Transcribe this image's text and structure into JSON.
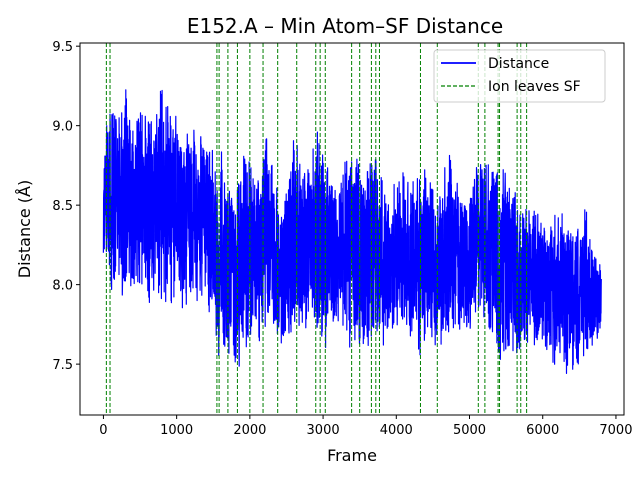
{
  "chart_data": {
    "type": "line",
    "title": "E152.A – Min Atom–SF Distance",
    "xlabel": "Frame",
    "ylabel": "Distance (Å)",
    "xlim": [
      -320,
      7110
    ],
    "ylim": [
      7.18,
      9.52
    ],
    "xticks": [
      0,
      1000,
      2000,
      3000,
      4000,
      5000,
      6000,
      7000
    ],
    "yticks": [
      7.5,
      8.0,
      8.5,
      9.0,
      9.5
    ],
    "ytick_labels": [
      "7.5",
      "8.0",
      "8.5",
      "9.0",
      "9.5"
    ],
    "legend": {
      "position": "top-right",
      "entries": [
        {
          "label": "Distance",
          "style": "solid",
          "color": "#0000ff"
        },
        {
          "label": "Ion leaves SF",
          "style": "dashed",
          "color": "#008000"
        }
      ]
    },
    "series": [
      {
        "name": "Distance",
        "color": "#0000ff",
        "n_frames": 6800,
        "x_step": 100,
        "envelope_x": [
          0,
          100,
          200,
          300,
          400,
          500,
          600,
          700,
          800,
          900,
          1000,
          1100,
          1200,
          1300,
          1400,
          1500,
          1600,
          1700,
          1800,
          1900,
          2000,
          2100,
          2200,
          2300,
          2400,
          2500,
          2600,
          2700,
          2800,
          2900,
          3000,
          3100,
          3200,
          3300,
          3400,
          3500,
          3600,
          3700,
          3800,
          3900,
          4000,
          4100,
          4200,
          4300,
          4400,
          4500,
          4600,
          4700,
          4800,
          4900,
          5000,
          5100,
          5200,
          5300,
          5400,
          5500,
          5600,
          5700,
          5800,
          5900,
          6000,
          6100,
          6200,
          6300,
          6400,
          6500,
          6600,
          6700,
          6800
        ],
        "envelope_max": [
          8.8,
          9.35,
          9.1,
          9.3,
          9.05,
          9.1,
          9.2,
          9.1,
          9.3,
          9.25,
          9.15,
          9.0,
          9.15,
          9.05,
          9.0,
          8.9,
          8.85,
          8.95,
          8.6,
          8.95,
          8.85,
          8.75,
          9.05,
          8.85,
          8.6,
          8.65,
          9.0,
          8.75,
          8.9,
          9.0,
          8.9,
          8.7,
          8.65,
          8.85,
          9.0,
          8.85,
          8.75,
          8.9,
          8.7,
          8.55,
          8.7,
          8.8,
          8.65,
          8.8,
          8.75,
          8.7,
          8.65,
          8.95,
          8.8,
          8.6,
          8.55,
          8.85,
          8.9,
          8.85,
          8.75,
          8.75,
          8.7,
          8.5,
          8.5,
          8.5,
          8.45,
          8.45,
          8.45,
          8.55,
          8.35,
          8.45,
          8.5,
          8.2,
          8.15
        ],
        "envelope_min": [
          8.15,
          7.8,
          7.9,
          7.85,
          7.85,
          7.9,
          7.8,
          7.8,
          7.8,
          7.85,
          7.85,
          7.8,
          7.8,
          7.85,
          7.85,
          7.75,
          7.4,
          7.55,
          7.45,
          7.5,
          7.55,
          7.6,
          7.6,
          7.65,
          7.5,
          7.6,
          7.65,
          7.7,
          7.65,
          7.6,
          7.5,
          7.7,
          7.75,
          7.65,
          7.55,
          7.55,
          7.5,
          7.6,
          7.6,
          7.65,
          7.65,
          7.6,
          7.6,
          7.45,
          7.65,
          7.55,
          7.6,
          7.5,
          7.6,
          7.7,
          7.7,
          7.75,
          7.65,
          7.65,
          7.45,
          7.55,
          7.35,
          7.5,
          7.6,
          7.6,
          7.55,
          7.5,
          7.45,
          7.4,
          7.45,
          7.4,
          7.55,
          7.5,
          7.75
        ]
      }
    ],
    "ion_leaves_sf_frames": [
      40,
      90,
      1550,
      1580,
      1700,
      1830,
      2000,
      2180,
      2380,
      2640,
      2900,
      2960,
      3030,
      3390,
      3500,
      3660,
      3720,
      3770,
      4330,
      4560,
      5120,
      5210,
      5390,
      5410,
      5650,
      5700,
      5780
    ]
  }
}
